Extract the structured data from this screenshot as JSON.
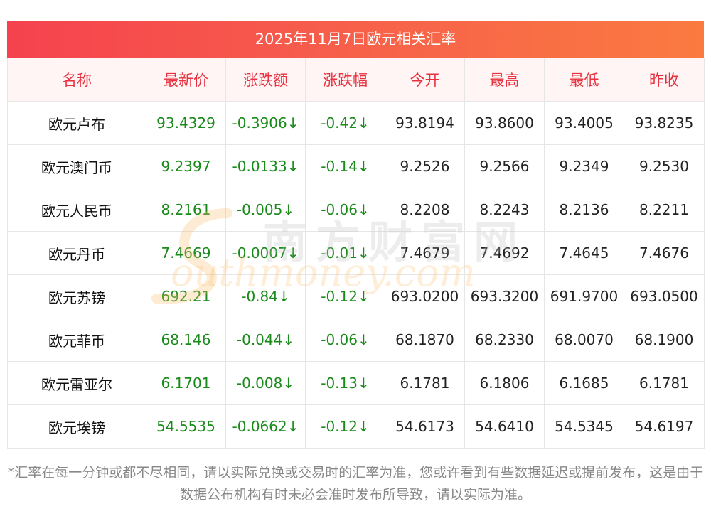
{
  "title": "2025年11月7日欧元相关汇率",
  "columns": [
    "名称",
    "最新价",
    "涨跌额",
    "涨跌幅",
    "今开",
    "最高",
    "最低",
    "昨收"
  ],
  "rows": [
    {
      "name": "欧元卢布",
      "latest": "93.4329",
      "change": "-0.3906↓",
      "pct": "-0.42↓",
      "open": "93.8194",
      "high": "93.8600",
      "low": "93.4005",
      "prev": "93.8235"
    },
    {
      "name": "欧元澳门币",
      "latest": "9.2397",
      "change": "-0.0133↓",
      "pct": "-0.14↓",
      "open": "9.2526",
      "high": "9.2566",
      "low": "9.2349",
      "prev": "9.2530"
    },
    {
      "name": "欧元人民币",
      "latest": "8.2161",
      "change": "-0.005↓",
      "pct": "-0.06↓",
      "open": "8.2208",
      "high": "8.2243",
      "low": "8.2136",
      "prev": "8.2211"
    },
    {
      "name": "欧元丹币",
      "latest": "7.4669",
      "change": "-0.0007↓",
      "pct": "-0.01↓",
      "open": "7.4679",
      "high": "7.4692",
      "low": "7.4645",
      "prev": "7.4676"
    },
    {
      "name": "欧元苏镑",
      "latest": "692.21",
      "change": "-0.84↓",
      "pct": "-0.12↓",
      "open": "693.0200",
      "high": "693.3200",
      "low": "691.9700",
      "prev": "693.0500"
    },
    {
      "name": "欧元菲币",
      "latest": "68.146",
      "change": "-0.044↓",
      "pct": "-0.06↓",
      "open": "68.1870",
      "high": "68.2330",
      "low": "68.0070",
      "prev": "68.1900"
    },
    {
      "name": "欧元雷亚尔",
      "latest": "6.1701",
      "change": "-0.008↓",
      "pct": "-0.13↓",
      "open": "6.1781",
      "high": "6.1806",
      "low": "6.1685",
      "prev": "6.1781"
    },
    {
      "name": "欧元埃镑",
      "latest": "54.5535",
      "change": "-0.0662↓",
      "pct": "-0.12↓",
      "open": "54.6173",
      "high": "54.6410",
      "low": "54.5345",
      "prev": "54.6197"
    }
  ],
  "watermark": {
    "cn": "南方财富网",
    "en": "outhmoney.com"
  },
  "footnote": "*汇率在每一分钟或都不尽相同，请以实际兑换或交易时的汇率为准，您或许看到有些数据延迟或提前发布，这是由于数据公布机构有时未必会准时发布所导致，请以实际为准。",
  "colors": {
    "header_accent": "#e8303f",
    "title_gradient_start": "#f5424e",
    "title_gradient_end": "#fa7a40",
    "down_green": "#1a8a1a"
  }
}
